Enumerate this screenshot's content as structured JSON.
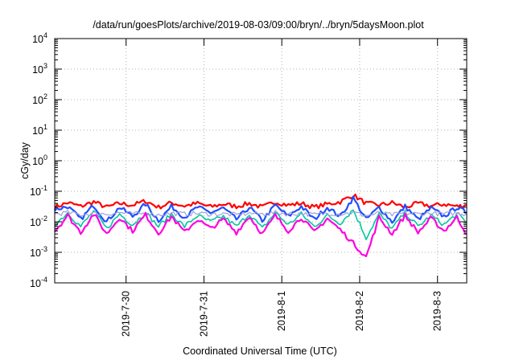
{
  "chart_data": {
    "type": "line",
    "title": "/data/run/goesPlots/archive/2019-08-03/09:00/bryn/../bryn/5daysMoon.plot",
    "xlabel": "Coordinated Universal Time (UTC)",
    "ylabel": "cGy/day",
    "yscale": "log",
    "ylim": [
      0.0001,
      10000
    ],
    "xlim": [
      "2019-07-29T02:00",
      "2019-08-03T09:00"
    ],
    "y_ticks": [
      {
        "base": "10",
        "exp": "-4",
        "value": 0.0001
      },
      {
        "base": "10",
        "exp": "-3",
        "value": 0.001
      },
      {
        "base": "10",
        "exp": "-2",
        "value": 0.01
      },
      {
        "base": "10",
        "exp": "-1",
        "value": 0.1
      },
      {
        "base": "10",
        "exp": "0",
        "value": 1
      },
      {
        "base": "10",
        "exp": "1",
        "value": 10
      },
      {
        "base": "10",
        "exp": "2",
        "value": 100
      },
      {
        "base": "10",
        "exp": "3",
        "value": 1000
      },
      {
        "base": "10",
        "exp": "4",
        "value": 10000
      }
    ],
    "x_ticks": [
      {
        "label": "2019-7-30",
        "value": "2019-07-30T00:00"
      },
      {
        "label": "2019-7-31",
        "value": "2019-07-31T00:00"
      },
      {
        "label": "2019-8-1",
        "value": "2019-08-01T00:00"
      },
      {
        "label": "2019-8-2",
        "value": "2019-08-02T00:00"
      },
      {
        "label": "2019-8-3",
        "value": "2019-08-03T00:00"
      }
    ],
    "grid": true,
    "series": [
      {
        "color": "#ff0000",
        "width": 2.2,
        "values": [
          {
            "x": "2019-07-29T02:00",
            "y": 0.03
          },
          {
            "x": "2019-07-29T06:00",
            "y": 0.042
          },
          {
            "x": "2019-07-29T10:00",
            "y": 0.032
          },
          {
            "x": "2019-07-29T14:00",
            "y": 0.045
          },
          {
            "x": "2019-07-29T18:00",
            "y": 0.03
          },
          {
            "x": "2019-07-29T22:00",
            "y": 0.04
          },
          {
            "x": "2019-07-30T02:00",
            "y": 0.035
          },
          {
            "x": "2019-07-30T06:00",
            "y": 0.048
          },
          {
            "x": "2019-07-30T10:00",
            "y": 0.03
          },
          {
            "x": "2019-07-30T14:00",
            "y": 0.042
          },
          {
            "x": "2019-07-30T18:00",
            "y": 0.033
          },
          {
            "x": "2019-07-30T22:00",
            "y": 0.04
          },
          {
            "x": "2019-07-31T02:00",
            "y": 0.031
          },
          {
            "x": "2019-07-31T06:00",
            "y": 0.038
          },
          {
            "x": "2019-07-31T10:00",
            "y": 0.032
          },
          {
            "x": "2019-07-31T14:00",
            "y": 0.04
          },
          {
            "x": "2019-07-31T18:00",
            "y": 0.03
          },
          {
            "x": "2019-07-31T22:00",
            "y": 0.045
          },
          {
            "x": "2019-08-01T02:00",
            "y": 0.035
          },
          {
            "x": "2019-08-01T06:00",
            "y": 0.04
          },
          {
            "x": "2019-08-01T10:00",
            "y": 0.03
          },
          {
            "x": "2019-08-01T14:00",
            "y": 0.038
          },
          {
            "x": "2019-08-01T18:00",
            "y": 0.045
          },
          {
            "x": "2019-08-01T22:00",
            "y": 0.075
          },
          {
            "x": "2019-08-02T02:00",
            "y": 0.04
          },
          {
            "x": "2019-08-02T06:00",
            "y": 0.035
          },
          {
            "x": "2019-08-02T10:00",
            "y": 0.042
          },
          {
            "x": "2019-08-02T14:00",
            "y": 0.03
          },
          {
            "x": "2019-08-02T18:00",
            "y": 0.04
          },
          {
            "x": "2019-08-02T22:00",
            "y": 0.033
          },
          {
            "x": "2019-08-03T02:00",
            "y": 0.038
          },
          {
            "x": "2019-08-03T06:00",
            "y": 0.032
          },
          {
            "x": "2019-08-03T09:00",
            "y": 0.035
          }
        ]
      },
      {
        "color": "#1f4fff",
        "width": 2.2,
        "values": [
          {
            "x": "2019-07-29T02:00",
            "y": 0.025
          },
          {
            "x": "2019-07-29T06:00",
            "y": 0.032
          },
          {
            "x": "2019-07-29T10:00",
            "y": 0.012
          },
          {
            "x": "2019-07-29T14:00",
            "y": 0.035
          },
          {
            "x": "2019-07-29T18:00",
            "y": 0.01
          },
          {
            "x": "2019-07-29T22:00",
            "y": 0.03
          },
          {
            "x": "2019-07-30T02:00",
            "y": 0.015
          },
          {
            "x": "2019-07-30T06:00",
            "y": 0.038
          },
          {
            "x": "2019-07-30T10:00",
            "y": 0.011
          },
          {
            "x": "2019-07-30T14:00",
            "y": 0.032
          },
          {
            "x": "2019-07-30T18:00",
            "y": 0.014
          },
          {
            "x": "2019-07-30T22:00",
            "y": 0.03
          },
          {
            "x": "2019-07-31T02:00",
            "y": 0.02
          },
          {
            "x": "2019-07-31T06:00",
            "y": 0.028
          },
          {
            "x": "2019-07-31T10:00",
            "y": 0.012
          },
          {
            "x": "2019-07-31T14:00",
            "y": 0.03
          },
          {
            "x": "2019-07-31T18:00",
            "y": 0.011
          },
          {
            "x": "2019-07-31T22:00",
            "y": 0.035
          },
          {
            "x": "2019-08-01T02:00",
            "y": 0.015
          },
          {
            "x": "2019-08-01T06:00",
            "y": 0.032
          },
          {
            "x": "2019-08-01T10:00",
            "y": 0.012
          },
          {
            "x": "2019-08-01T14:00",
            "y": 0.03
          },
          {
            "x": "2019-08-01T18:00",
            "y": 0.015
          },
          {
            "x": "2019-08-01T22:00",
            "y": 0.06
          },
          {
            "x": "2019-08-02T02:00",
            "y": 0.012
          },
          {
            "x": "2019-08-02T06:00",
            "y": 0.03
          },
          {
            "x": "2019-08-02T10:00",
            "y": 0.01
          },
          {
            "x": "2019-08-02T14:00",
            "y": 0.032
          },
          {
            "x": "2019-08-02T18:00",
            "y": 0.012
          },
          {
            "x": "2019-08-02T22:00",
            "y": 0.028
          },
          {
            "x": "2019-08-03T02:00",
            "y": 0.015
          },
          {
            "x": "2019-08-03T06:00",
            "y": 0.03
          },
          {
            "x": "2019-08-03T09:00",
            "y": 0.02
          }
        ]
      },
      {
        "color": "#00c8a0",
        "width": 1.6,
        "values": [
          {
            "x": "2019-07-29T02:00",
            "y": 0.008
          },
          {
            "x": "2019-07-29T06:00",
            "y": 0.02
          },
          {
            "x": "2019-07-29T10:00",
            "y": 0.007
          },
          {
            "x": "2019-07-29T14:00",
            "y": 0.022
          },
          {
            "x": "2019-07-29T18:00",
            "y": 0.006
          },
          {
            "x": "2019-07-29T22:00",
            "y": 0.018
          },
          {
            "x": "2019-07-30T02:00",
            "y": 0.008
          },
          {
            "x": "2019-07-30T06:00",
            "y": 0.02
          },
          {
            "x": "2019-07-30T10:00",
            "y": 0.007
          },
          {
            "x": "2019-07-30T14:00",
            "y": 0.018
          },
          {
            "x": "2019-07-30T18:00",
            "y": 0.007
          },
          {
            "x": "2019-07-30T22:00",
            "y": 0.016
          },
          {
            "x": "2019-07-31T02:00",
            "y": 0.01
          },
          {
            "x": "2019-07-31T06:00",
            "y": 0.015
          },
          {
            "x": "2019-07-31T10:00",
            "y": 0.007
          },
          {
            "x": "2019-07-31T14:00",
            "y": 0.018
          },
          {
            "x": "2019-07-31T18:00",
            "y": 0.006
          },
          {
            "x": "2019-07-31T22:00",
            "y": 0.02
          },
          {
            "x": "2019-08-01T02:00",
            "y": 0.008
          },
          {
            "x": "2019-08-01T06:00",
            "y": 0.018
          },
          {
            "x": "2019-08-01T10:00",
            "y": 0.007
          },
          {
            "x": "2019-08-01T14:00",
            "y": 0.016
          },
          {
            "x": "2019-08-01T18:00",
            "y": 0.009
          },
          {
            "x": "2019-08-01T22:00",
            "y": 0.025
          },
          {
            "x": "2019-08-02T02:00",
            "y": 0.003
          },
          {
            "x": "2019-08-02T06:00",
            "y": 0.018
          },
          {
            "x": "2019-08-02T10:00",
            "y": 0.006
          },
          {
            "x": "2019-08-02T14:00",
            "y": 0.02
          },
          {
            "x": "2019-08-02T18:00",
            "y": 0.007
          },
          {
            "x": "2019-08-02T22:00",
            "y": 0.016
          },
          {
            "x": "2019-08-03T02:00",
            "y": 0.008
          },
          {
            "x": "2019-08-03T06:00",
            "y": 0.018
          },
          {
            "x": "2019-08-03T09:00",
            "y": 0.01
          }
        ]
      },
      {
        "color": "#a0a0d8",
        "width": 1.2,
        "values": [
          {
            "x": "2019-07-29T02:00",
            "y": 0.018
          },
          {
            "x": "2019-07-29T06:00",
            "y": 0.02
          },
          {
            "x": "2019-07-29T10:00",
            "y": 0.017
          },
          {
            "x": "2019-07-29T14:00",
            "y": 0.019
          },
          {
            "x": "2019-07-29T18:00",
            "y": 0.018
          },
          {
            "x": "2019-07-29T22:00",
            "y": 0.02
          },
          {
            "x": "2019-07-30T02:00",
            "y": 0.018
          },
          {
            "x": "2019-07-30T06:00",
            "y": 0.019
          },
          {
            "x": "2019-07-30T10:00",
            "y": 0.017
          },
          {
            "x": "2019-07-30T14:00",
            "y": 0.019
          },
          {
            "x": "2019-07-30T18:00",
            "y": 0.018
          },
          {
            "x": "2019-07-30T22:00",
            "y": 0.019
          },
          {
            "x": "2019-07-31T02:00",
            "y": 0.018
          },
          {
            "x": "2019-07-31T06:00",
            "y": 0.018
          },
          {
            "x": "2019-07-31T10:00",
            "y": 0.017
          },
          {
            "x": "2019-07-31T14:00",
            "y": 0.019
          },
          {
            "x": "2019-07-31T18:00",
            "y": 0.018
          },
          {
            "x": "2019-07-31T22:00",
            "y": 0.02
          },
          {
            "x": "2019-08-01T02:00",
            "y": 0.018
          },
          {
            "x": "2019-08-01T06:00",
            "y": 0.019
          },
          {
            "x": "2019-08-01T10:00",
            "y": 0.017
          },
          {
            "x": "2019-08-01T14:00",
            "y": 0.019
          },
          {
            "x": "2019-08-01T18:00",
            "y": 0.018
          },
          {
            "x": "2019-08-01T22:00",
            "y": 0.02
          },
          {
            "x": "2019-08-02T02:00",
            "y": 0.016
          },
          {
            "x": "2019-08-02T06:00",
            "y": 0.019
          },
          {
            "x": "2019-08-02T10:00",
            "y": 0.017
          },
          {
            "x": "2019-08-02T14:00",
            "y": 0.019
          },
          {
            "x": "2019-08-02T18:00",
            "y": 0.018
          },
          {
            "x": "2019-08-02T22:00",
            "y": 0.019
          },
          {
            "x": "2019-08-03T02:00",
            "y": 0.018
          },
          {
            "x": "2019-08-03T06:00",
            "y": 0.019
          },
          {
            "x": "2019-08-03T09:00",
            "y": 0.018
          }
        ]
      },
      {
        "color": "#ff00e0",
        "width": 2.2,
        "values": [
          {
            "x": "2019-07-29T02:00",
            "y": 0.005
          },
          {
            "x": "2019-07-29T06:00",
            "y": 0.016
          },
          {
            "x": "2019-07-29T10:00",
            "y": 0.0045
          },
          {
            "x": "2019-07-29T14:00",
            "y": 0.018
          },
          {
            "x": "2019-07-29T18:00",
            "y": 0.004
          },
          {
            "x": "2019-07-29T22:00",
            "y": 0.014
          },
          {
            "x": "2019-07-30T02:00",
            "y": 0.005
          },
          {
            "x": "2019-07-30T06:00",
            "y": 0.017
          },
          {
            "x": "2019-07-30T10:00",
            "y": 0.0042
          },
          {
            "x": "2019-07-30T14:00",
            "y": 0.015
          },
          {
            "x": "2019-07-30T18:00",
            "y": 0.0045
          },
          {
            "x": "2019-07-30T22:00",
            "y": 0.012
          },
          {
            "x": "2019-07-31T02:00",
            "y": 0.006
          },
          {
            "x": "2019-07-31T06:00",
            "y": 0.012
          },
          {
            "x": "2019-07-31T10:00",
            "y": 0.0045
          },
          {
            "x": "2019-07-31T14:00",
            "y": 0.015
          },
          {
            "x": "2019-07-31T18:00",
            "y": 0.004
          },
          {
            "x": "2019-07-31T22:00",
            "y": 0.016
          },
          {
            "x": "2019-08-01T02:00",
            "y": 0.005
          },
          {
            "x": "2019-08-01T06:00",
            "y": 0.014
          },
          {
            "x": "2019-08-01T10:00",
            "y": 0.0045
          },
          {
            "x": "2019-08-01T14:00",
            "y": 0.013
          },
          {
            "x": "2019-08-01T18:00",
            "y": 0.0055
          },
          {
            "x": "2019-08-01T22:00",
            "y": 0.002
          },
          {
            "x": "2019-08-02T02:00",
            "y": 0.0007
          },
          {
            "x": "2019-08-02T06:00",
            "y": 0.014
          },
          {
            "x": "2019-08-02T10:00",
            "y": 0.004
          },
          {
            "x": "2019-08-02T14:00",
            "y": 0.016
          },
          {
            "x": "2019-08-02T18:00",
            "y": 0.0045
          },
          {
            "x": "2019-08-02T22:00",
            "y": 0.013
          },
          {
            "x": "2019-08-03T02:00",
            "y": 0.005
          },
          {
            "x": "2019-08-03T06:00",
            "y": 0.014
          },
          {
            "x": "2019-08-03T09:00",
            "y": 0.004
          }
        ]
      }
    ]
  }
}
